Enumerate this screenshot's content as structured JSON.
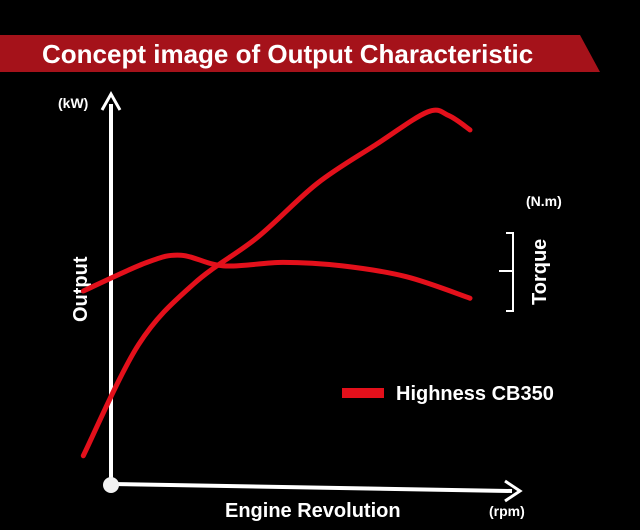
{
  "chart_data": {
    "type": "line",
    "title": "Concept image of Output Characteristic",
    "xlabel": "Engine Revolution",
    "x_unit": "(rpm)",
    "ylabel": "Output",
    "y_unit": "(kW)",
    "y2label": "Torque",
    "y2_unit": "(N.m)",
    "grid": false,
    "legend_position": "bottom-right",
    "legend": [
      {
        "label": "Highness CB350",
        "color": "#e3101b"
      }
    ],
    "series": [
      {
        "role": "output",
        "color": "#e3101b",
        "x": [
          0.09,
          0.22,
          0.35,
          0.5,
          0.64,
          0.78,
          0.9,
          0.95,
          1.0
        ],
        "y": [
          0.04,
          0.35,
          0.52,
          0.65,
          0.8,
          0.91,
          1.0,
          0.99,
          0.95
        ]
      },
      {
        "role": "torque",
        "color": "#e3101b",
        "x": [
          0.09,
          0.24,
          0.32,
          0.42,
          0.56,
          0.7,
          0.85,
          1.0
        ],
        "y": [
          0.5,
          0.58,
          0.6,
          0.57,
          0.58,
          0.57,
          0.54,
          0.48
        ]
      }
    ]
  }
}
